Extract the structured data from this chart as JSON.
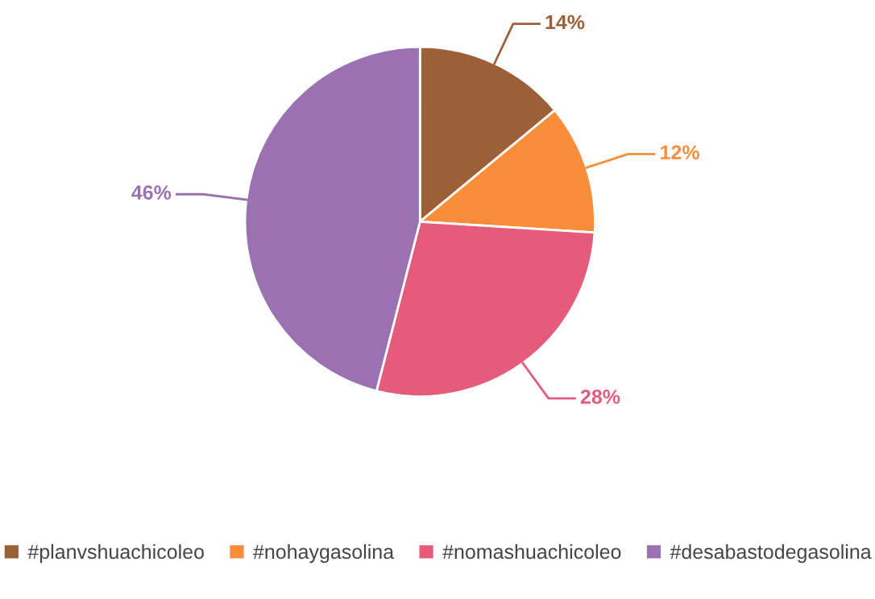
{
  "chart_data": {
    "type": "pie",
    "categories": [
      "#planvshuachicoleo",
      "#nohaygasolina",
      "#nomashuachicoleo",
      "#desabastodegasolina"
    ],
    "values": [
      14,
      12,
      28,
      46
    ],
    "colors": [
      "#9c5f38",
      "#f98d3a",
      "#e45b7c",
      "#9a72b2"
    ],
    "value_labels": [
      "14%",
      "12%",
      "28%",
      "46%"
    ],
    "legend": "bottom"
  }
}
